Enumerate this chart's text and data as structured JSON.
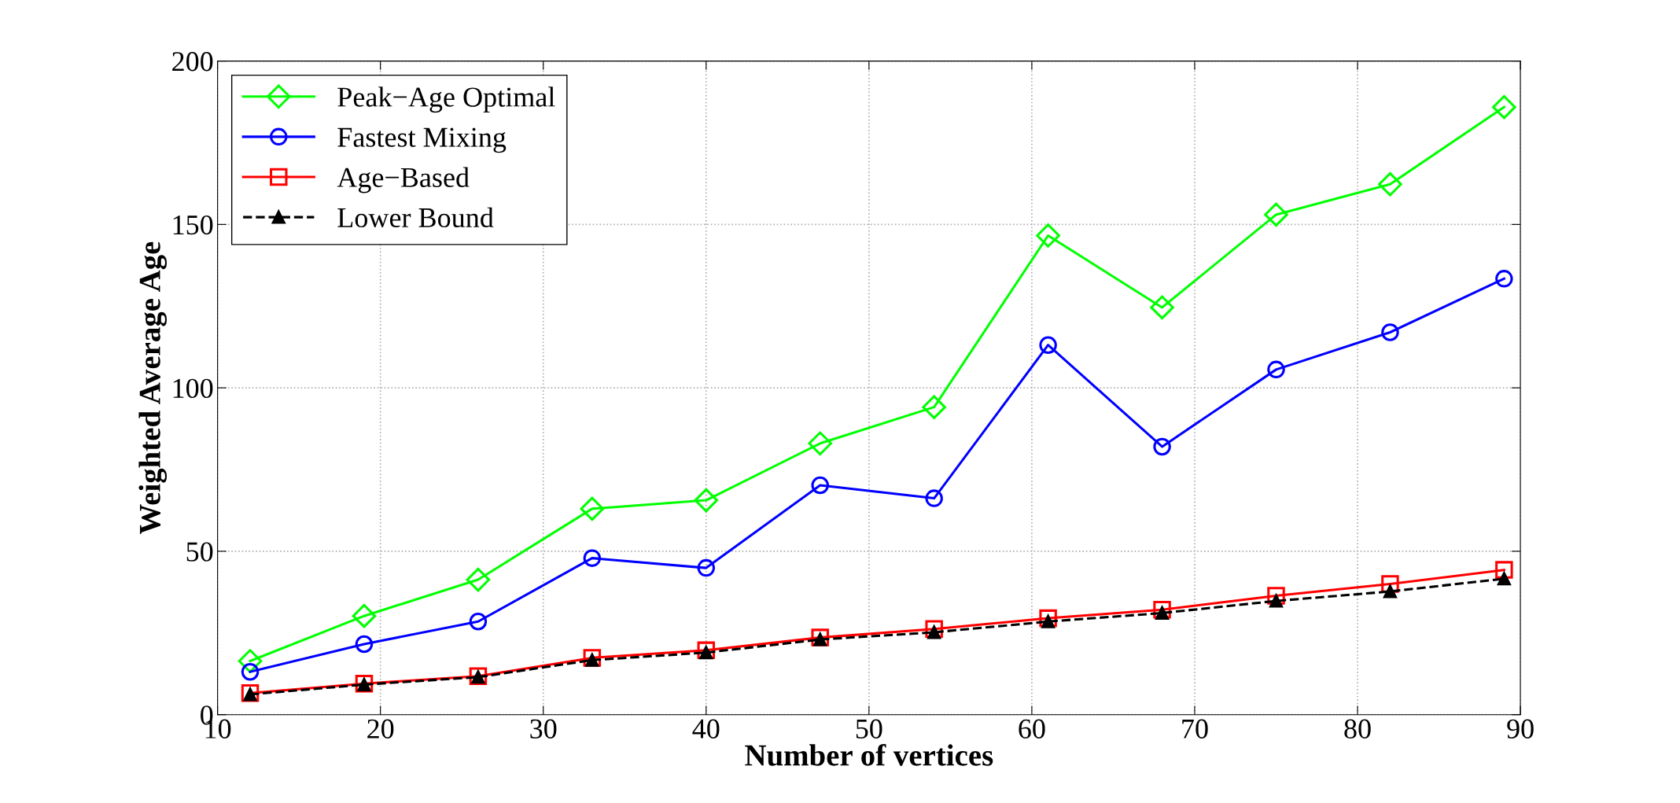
{
  "chart_data": {
    "type": "line",
    "xlabel": "Number of vertices",
    "ylabel": "Weighted Average Age",
    "x": [
      12,
      19,
      26,
      33,
      40,
      47,
      54,
      61,
      68,
      75,
      82,
      89
    ],
    "series": [
      {
        "name": "Peak−Age Optimal",
        "color": "#00ff00",
        "marker": "diamond",
        "line_style": "solid",
        "values": [
          16.4,
          30.2,
          41.3,
          63,
          65.6,
          83,
          94.1,
          146.6,
          124.6,
          153,
          162.3,
          185.9
        ]
      },
      {
        "name": "Fastest Mixing",
        "color": "#0000ff",
        "marker": "circle",
        "line_style": "solid",
        "values": [
          13.1,
          21.6,
          28.5,
          47.9,
          44.9,
          70.2,
          66.2,
          113.1,
          82,
          105.6,
          117,
          133.4
        ]
      },
      {
        "name": "Age−Based",
        "color": "#ff0000",
        "marker": "square",
        "line_style": "solid",
        "values": [
          6.6,
          9.5,
          11.8,
          17.4,
          19.7,
          23.6,
          26.2,
          29.5,
          32.1,
          36.4,
          40,
          44.3
        ]
      },
      {
        "name": "Lower Bound",
        "color": "#000000",
        "marker": "triangle",
        "line_style": "dashed",
        "values": [
          6.2,
          9.2,
          11.5,
          16.7,
          19,
          23,
          25.2,
          28.5,
          31.1,
          34.8,
          37.7,
          41.6
        ]
      }
    ],
    "xlim": [
      10,
      90
    ],
    "xticks": [
      10,
      20,
      30,
      40,
      50,
      60,
      70,
      80,
      90
    ],
    "ylim": [
      0,
      200
    ],
    "yticks": [
      0,
      50,
      100,
      150,
      200
    ],
    "grid": true,
    "legend": "top left"
  }
}
